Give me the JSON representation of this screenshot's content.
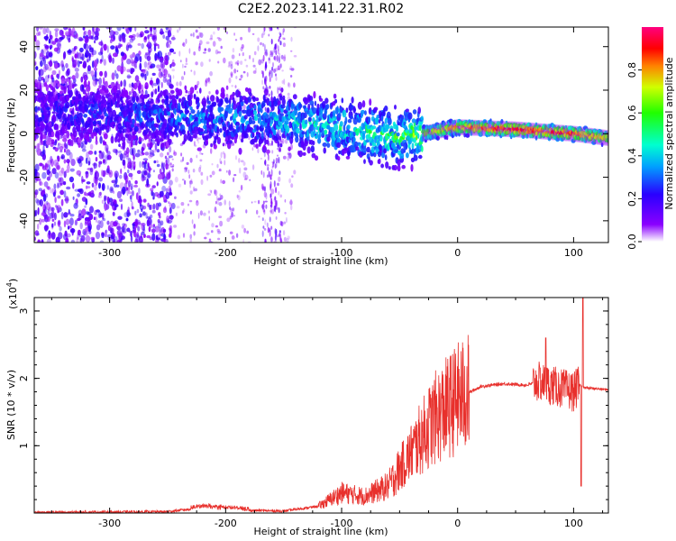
{
  "title": "C2E2.2023.141.22.31.R02",
  "chart_data": [
    {
      "type": "heatmap",
      "title": "C2E2.2023.141.22.31.R02",
      "xlabel": "Height of straight line (km)",
      "ylabel": "Frequency (Hz)",
      "xlim": [
        -365,
        130
      ],
      "ylim": [
        -50,
        49
      ],
      "xticks": [
        -300,
        -200,
        -100,
        0,
        100
      ],
      "yticks": [
        -40,
        -20,
        0,
        20,
        40
      ],
      "colorbar": {
        "label": "Normalized spectral amplitude",
        "range": [
          0.0,
          1.0
        ],
        "ticks": [
          0.0,
          0.2,
          0.4,
          0.6,
          0.8
        ]
      },
      "ridge": {
        "description_points_x": [
          -365,
          -250,
          -150,
          -100,
          -50,
          -30,
          0,
          50,
          100,
          130
        ],
        "center_freq": [
          10,
          8,
          6,
          3,
          -2,
          0,
          3,
          2,
          0,
          -2
        ],
        "amplitude": [
          0.25,
          0.35,
          0.45,
          0.55,
          0.6,
          0.7,
          0.85,
          0.95,
          0.9,
          0.75
        ]
      }
    },
    {
      "type": "line",
      "xlabel": "Height of straight line (km)",
      "ylabel": "SNR (10 * v/v)",
      "multiplier": "(x10",
      "multiplier_exp": "4",
      "multiplier_close": ")",
      "xlim": [
        -365,
        130
      ],
      "ylim": [
        0,
        3.2
      ],
      "xticks": [
        -300,
        -200,
        -100,
        0,
        100
      ],
      "yticks": [
        1,
        2,
        3
      ],
      "series": [
        {
          "name": "SNR",
          "color": "#e8302c",
          "envelope_x": [
            -365,
            -250,
            -220,
            -180,
            -150,
            -120,
            -100,
            -80,
            -60,
            -40,
            -20,
            0,
            20,
            40,
            60,
            70,
            80,
            90,
            100,
            105,
            110,
            130
          ],
          "envelope_y": [
            0.01,
            0.02,
            0.08,
            0.04,
            0.03,
            0.1,
            0.3,
            0.25,
            0.4,
            0.9,
            1.4,
            1.7,
            1.88,
            1.92,
            1.9,
            1.95,
            1.9,
            1.85,
            1.8,
            1.9,
            1.86,
            1.83
          ]
        }
      ]
    }
  ]
}
